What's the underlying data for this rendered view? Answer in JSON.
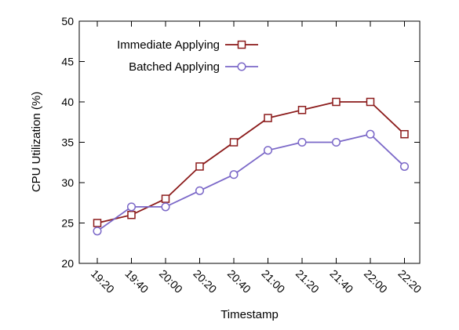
{
  "chart_data": {
    "type": "line",
    "title": "",
    "xlabel": "Timestamp",
    "ylabel": "CPU Utilization (%)",
    "ylim": [
      20,
      50
    ],
    "yticks": [
      20,
      25,
      30,
      35,
      40,
      45,
      50
    ],
    "categories": [
      "19:20",
      "19:40",
      "20:00",
      "20:20",
      "20:40",
      "21:00",
      "21:20",
      "21:40",
      "22:00",
      "22:20"
    ],
    "grid": false,
    "legend_position": "top-left",
    "series": [
      {
        "name": "Immediate Applying",
        "values": [
          25,
          26,
          28,
          32,
          35,
          38,
          39,
          40,
          40,
          36
        ],
        "color": "#8b1a1a",
        "marker": "square"
      },
      {
        "name": "Batched Applying",
        "values": [
          24,
          27,
          27,
          29,
          31,
          34,
          35,
          35,
          36,
          32
        ],
        "color": "#7b68c8",
        "marker": "circle"
      }
    ]
  }
}
